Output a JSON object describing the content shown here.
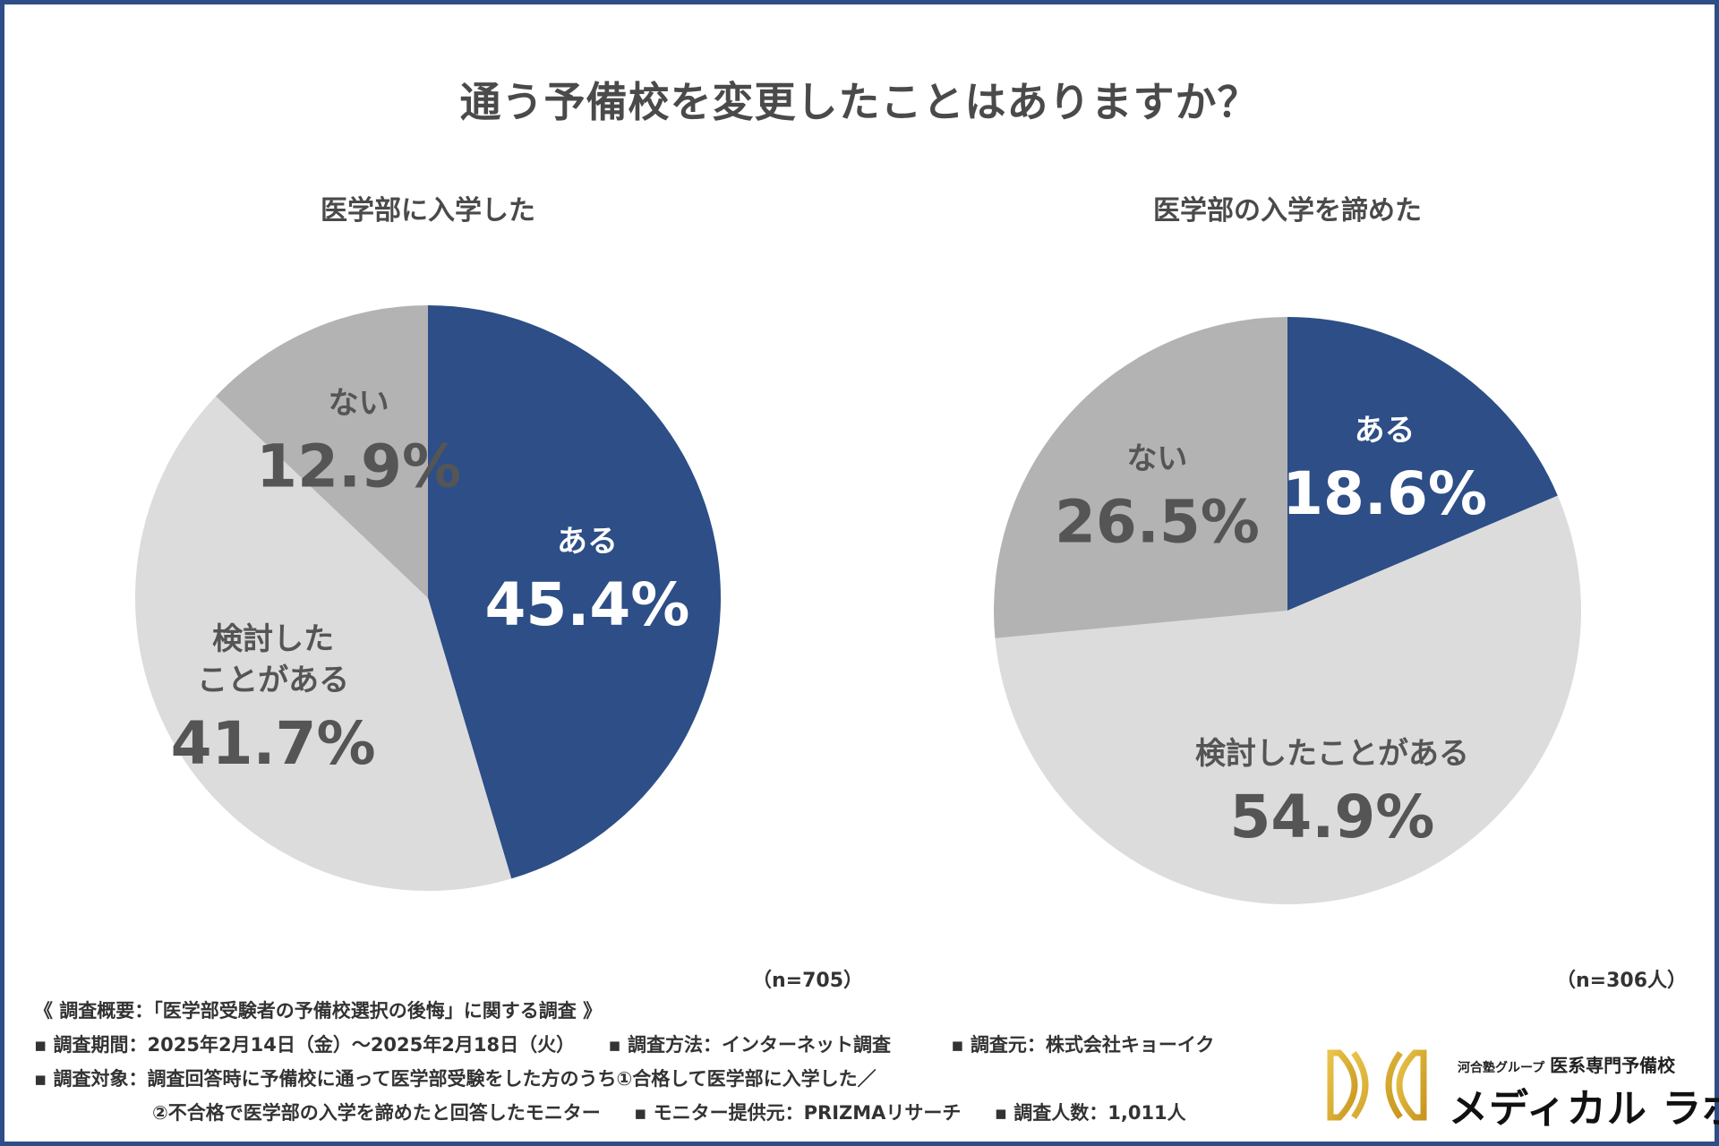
{
  "title": "通う予備校を変更したことはありますか？",
  "colors": {
    "aru": "#2d4e86",
    "kentou": "#dcdcdc",
    "nai": "#b3b3b3",
    "dark_text": "#555555",
    "light_text": "#ffffff"
  },
  "chart_data": [
    {
      "type": "pie",
      "title": "医学部に入学した",
      "sample": "（n=705）",
      "slices": [
        {
          "name": "ある",
          "value": 45.4,
          "display": "45.4%",
          "color": "#2d4e86",
          "text_color": "#ffffff"
        },
        {
          "name": "検討したことがある",
          "name_lines": [
            "検討した",
            "ことがある"
          ],
          "value": 41.7,
          "display": "41.7%",
          "color": "#dcdcdc",
          "text_color": "#555555"
        },
        {
          "name": "ない",
          "value": 12.9,
          "display": "12.9%",
          "color": "#b3b3b3",
          "text_color": "#555555"
        }
      ]
    },
    {
      "type": "pie",
      "title": "医学部の入学を諦めた",
      "sample": "（n=306人）",
      "slices": [
        {
          "name": "ある",
          "value": 18.6,
          "display": "18.6%",
          "color": "#2d4e86",
          "text_color": "#ffffff"
        },
        {
          "name": "検討したことがある",
          "name_lines": [
            "検討したことがある"
          ],
          "value": 54.9,
          "display": "54.9%",
          "color": "#dcdcdc",
          "text_color": "#555555"
        },
        {
          "name": "ない",
          "value": 26.5,
          "display": "26.5%",
          "color": "#b3b3b3",
          "text_color": "#555555"
        }
      ]
    }
  ],
  "notes": {
    "overview": "《 調査概要：「医学部受験者の予備校選択の後悔」に関する調査 》",
    "period": "▪ 調査期間：2025年2月14日（金）〜2025年2月18日（火）",
    "method": "▪ 調査方法：インターネット調査",
    "source": "▪ 調査元：株式会社キョーイク",
    "target1": "▪ 調査対象：調査回答時に予備校に通って医学部受験をした方のうち①合格して医学部に入学した／",
    "target2": "②不合格で医学部の入学を諦めたと回答したモニター",
    "provider": "▪ モニター提供元：PRIZMAリサーチ",
    "count": "▪ 調査人数：1,011人"
  },
  "logo": {
    "group": "河合塾グループ",
    "tagline": "医系専門予備校",
    "name": "メディカル ラボ"
  }
}
